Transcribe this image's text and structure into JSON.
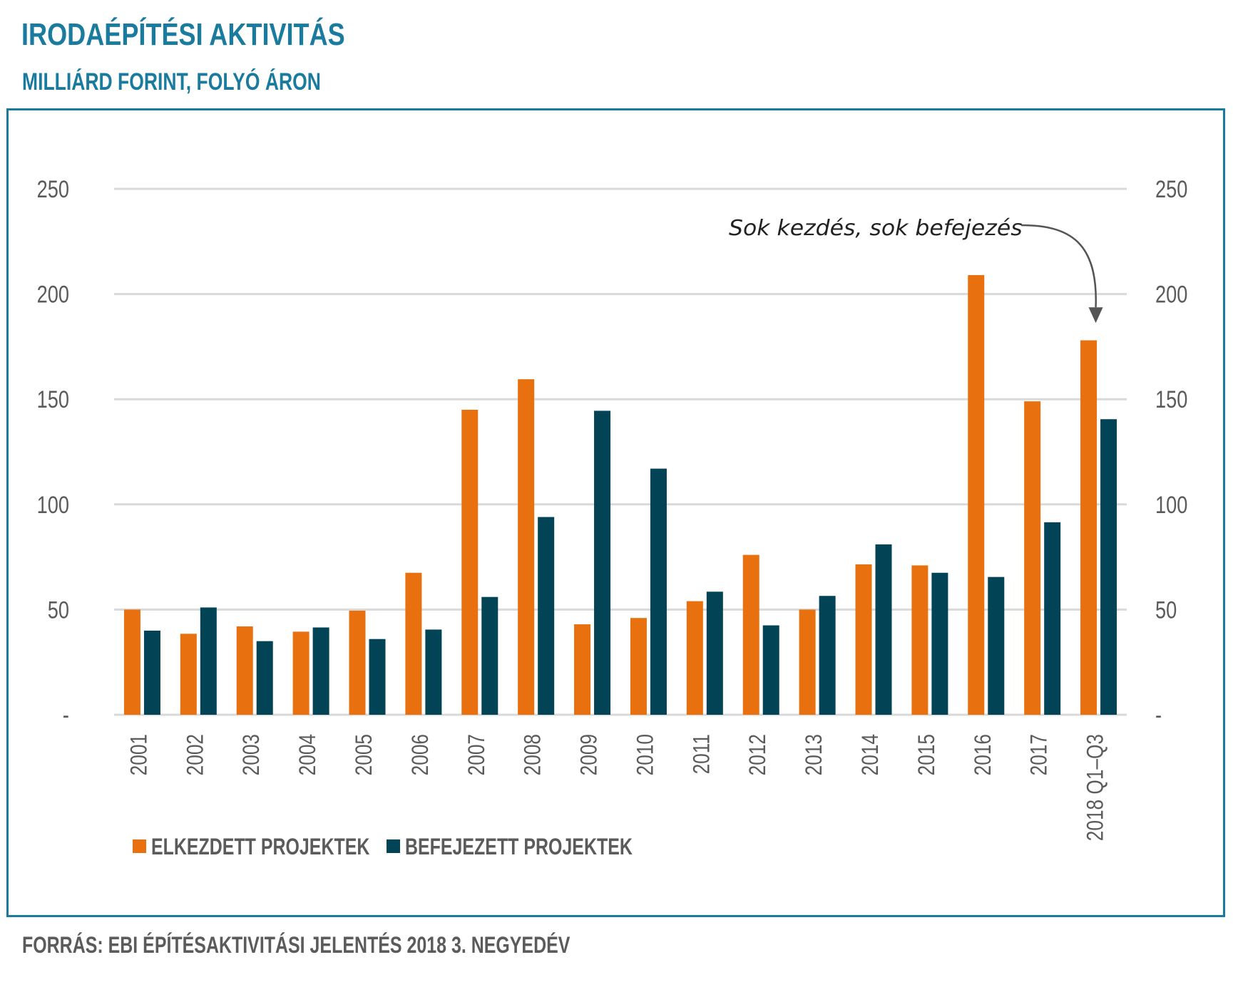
{
  "header": {
    "title": "IRODAÉPÍTÉSI AKTIVITÁS",
    "subtitle": "MILLIÁRD FORINT, FOLYÓ ÁRON"
  },
  "footer": {
    "source": "FORRÁS: EBI ÉPÍTÉSAKTIVITÁSI JELENTÉS 2018 3. NEGYEDÉV"
  },
  "colors": {
    "accent": "#1a7b9e",
    "started": "#e8700e",
    "completed": "#034356",
    "grid": "#d9d9d9",
    "text": "#5b5b5b"
  },
  "chart_data": {
    "type": "bar",
    "title": "IRODAÉPÍTÉSI AKTIVITÁS",
    "subtitle": "MILLIÁRD FORINT, FOLYÓ ÁRON",
    "xlabel": "",
    "ylabel": "",
    "ylim": [
      0,
      250
    ],
    "yticks": [
      0,
      50,
      100,
      150,
      200,
      250
    ],
    "ytick_labels": [
      "-",
      "50",
      "100",
      "150",
      "200",
      "250"
    ],
    "grid": true,
    "dual_axis_labels": true,
    "legend_position": "bottom-left",
    "categories": [
      "2001",
      "2002",
      "2003",
      "2004",
      "2005",
      "2006",
      "2007",
      "2008",
      "2009",
      "2010",
      "2011",
      "2012",
      "2013",
      "2014",
      "2015",
      "2016",
      "2017",
      "2018 Q1–Q3"
    ],
    "series": [
      {
        "name": "ELKEZDETT PROJEKTEK",
        "color": "#e8700e",
        "values": [
          50,
          38.5,
          42,
          39.5,
          49.5,
          67.5,
          145,
          159.5,
          43,
          46,
          54,
          76,
          50,
          71.5,
          71,
          209,
          149,
          178
        ]
      },
      {
        "name": "BEFEJEZETT PROJEKTEK",
        "color": "#034356",
        "values": [
          40,
          51,
          35,
          41.5,
          36,
          40.5,
          56,
          94,
          144.5,
          117,
          58.5,
          42.5,
          56.5,
          81,
          67.5,
          65.5,
          91.5,
          140.5
        ]
      }
    ],
    "annotations": [
      {
        "text": "Sok kezdés, sok befejezés",
        "target_category": "2018 Q1–Q3",
        "target_value": 193
      }
    ]
  }
}
